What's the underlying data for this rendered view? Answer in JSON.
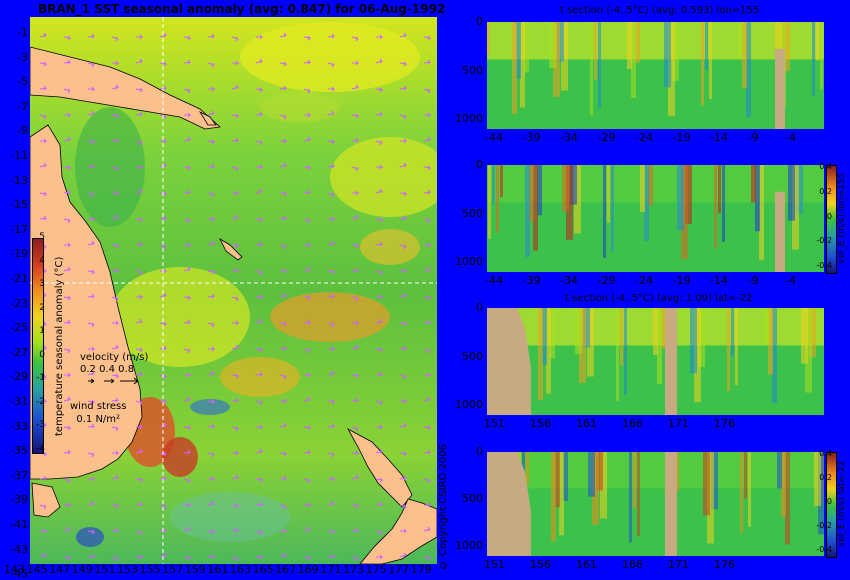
{
  "map": {
    "title": "BRAN_1 SST seasonal anomaly (avg: 0.847) for 06-Aug-1992",
    "lat_labels": [
      "-1",
      "-3",
      "-5",
      "-7",
      "-9",
      "-11",
      "-13",
      "-15",
      "-17",
      "-19",
      "-21",
      "-23",
      "-25",
      "-27",
      "-29",
      "-31",
      "-33",
      "-35",
      "-37",
      "-39",
      "-41",
      "-43",
      "-45"
    ],
    "lon_labels": [
      "143",
      "145",
      "147",
      "149",
      "151",
      "153",
      "155",
      "157",
      "159",
      "161",
      "163",
      "165",
      "167",
      "169",
      "171",
      "173",
      "175",
      "177",
      "179"
    ],
    "colorbar": {
      "label": "temperature seasonal anomaly (°C)",
      "ticks": [
        "5",
        "4",
        "3",
        "2",
        "1",
        "0",
        "-1",
        "-2",
        "-3",
        "-4"
      ],
      "range": [
        -4,
        5
      ]
    },
    "velocity_legend": {
      "title": "velocity (m/s)",
      "values": "0.2 0.4 0.8"
    },
    "wind_legend": {
      "title": "wind stress",
      "value": "0.1 N/m²"
    },
    "crosshair": {
      "lon": 155,
      "lat": -22
    },
    "copyright": "© Copyright CSIRO 2006"
  },
  "panels": [
    {
      "title": "t section (-4..5°C) (avg: 0.593) lon=155",
      "x_ticks": [
        "-44",
        "-39",
        "-34",
        "-29",
        "-24",
        "-19",
        "-14",
        "-9",
        "-4"
      ],
      "y_ticks": [
        "0",
        "500",
        "1000"
      ],
      "y_range": [
        0,
        1050
      ]
    },
    {
      "title": "",
      "x_ticks": [
        "-44",
        "-39",
        "-34",
        "-29",
        "-24",
        "-19",
        "-14",
        "-9",
        "-4"
      ],
      "y_ticks": [
        "0",
        "500",
        "1000"
      ],
      "y_range": [
        0,
        1050
      ],
      "colorbar": {
        "label": "vel_E (m/s) lon=155",
        "ticks": [
          "0.4",
          "0.2",
          "0",
          "-0.2",
          "-0.4"
        ]
      }
    },
    {
      "title": "t section (-4..5°C) (avg: 1.09) lat=-22",
      "x_ticks": [
        "151",
        "156",
        "161",
        "166",
        "171",
        "176"
      ],
      "y_ticks": [
        "0",
        "500",
        "1000"
      ],
      "y_range": [
        0,
        1050
      ]
    },
    {
      "title": "",
      "x_ticks": [
        "151",
        "156",
        "161",
        "166",
        "171",
        "176"
      ],
      "y_ticks": [
        "0",
        "500",
        "1000"
      ],
      "y_range": [
        0,
        1050
      ],
      "colorbar": {
        "label": "vel_E (m/s) lat=-22",
        "ticks": [
          "0.4",
          "0.2",
          "0",
          "-0.2",
          "-0.4"
        ]
      }
    }
  ]
}
